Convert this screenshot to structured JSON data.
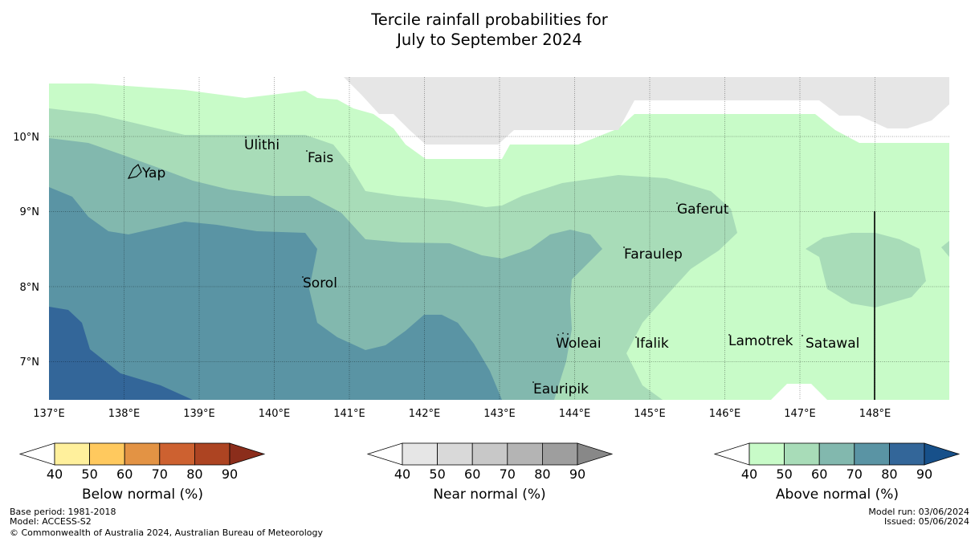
{
  "title": {
    "line1": "Tercile rainfall probabilities for",
    "line2": "July to September 2024"
  },
  "axes": {
    "longitude_labels": [
      "137°E",
      "138°E",
      "139°E",
      "140°E",
      "141°E",
      "142°E",
      "143°E",
      "144°E",
      "145°E",
      "146°E",
      "147°E",
      "148°E"
    ],
    "latitude_labels": [
      "10°N",
      "9°N",
      "8°N",
      "7°N"
    ]
  },
  "places": [
    {
      "name": "Ulithi"
    },
    {
      "name": "Fais"
    },
    {
      "name": "Yap"
    },
    {
      "name": "Gaferut"
    },
    {
      "name": "Faraulep"
    },
    {
      "name": "Sorol"
    },
    {
      "name": "Woleai"
    },
    {
      "name": "Ifalik"
    },
    {
      "name": "Lamotrek"
    },
    {
      "name": "Satawal"
    },
    {
      "name": "Eauripik"
    }
  ],
  "legends": {
    "below": {
      "title": "Below normal (%)",
      "ticks": [
        "40",
        "50",
        "60",
        "70",
        "80",
        "90"
      ],
      "colors": [
        "#fff09c",
        "#ffc95e",
        "#e39344",
        "#cd6130",
        "#ad4422",
        "#8b2d1b"
      ]
    },
    "near": {
      "title": "Near normal (%)",
      "ticks": [
        "40",
        "50",
        "60",
        "70",
        "80",
        "90"
      ],
      "colors": [
        "#e6e6e6",
        "#d9d9d9",
        "#c8c8c8",
        "#b4b4b4",
        "#9e9e9e",
        "#888888"
      ]
    },
    "above": {
      "title": "Above normal (%)",
      "ticks": [
        "40",
        "50",
        "60",
        "70",
        "80",
        "90"
      ],
      "colors": [
        "#c8fbc8",
        "#a8dcb8",
        "#82b8ae",
        "#5a94a4",
        "#336699",
        "#17508a"
      ]
    }
  },
  "footer": {
    "base_period": "Base period: 1981-2018",
    "model": "Model: ACCESS-S2",
    "copyright": "© Commonwealth of Australia 2024, Australian Bureau of Meteorology",
    "model_run": "Model run: 03/06/2024",
    "issued": "Issued: 05/06/2024"
  }
}
